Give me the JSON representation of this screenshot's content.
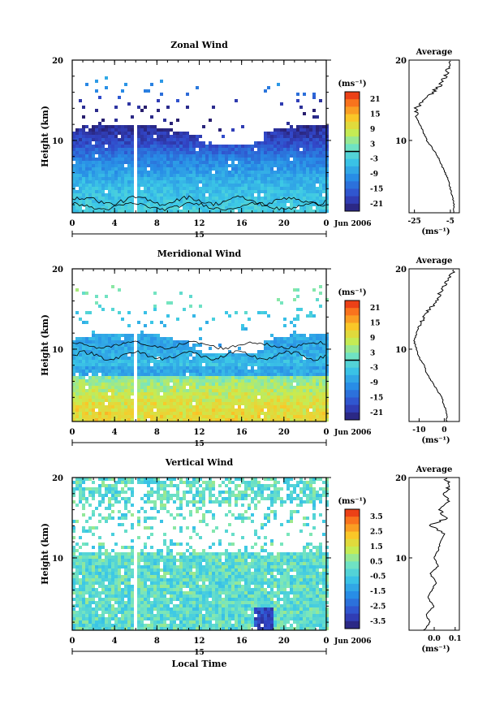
{
  "chart_data": [
    {
      "type": "heatmap",
      "title": "Zonal Wind",
      "ylabel": "Height (km)",
      "x_ticks": [
        "0",
        "4",
        "8",
        "12",
        "16",
        "20",
        "0"
      ],
      "x_range": [
        0,
        24
      ],
      "y_ticks": [
        "20",
        "10"
      ],
      "y_range": [
        1,
        20
      ],
      "date_marker": "15",
      "date_label": "Jun 2006",
      "colorbar": {
        "unit": "(ms⁻¹)",
        "ticks": [
          "21",
          "15",
          "9",
          "3",
          "-3",
          "-9",
          "-15",
          "-21"
        ],
        "range": [
          -24,
          24
        ]
      },
      "average_profile": {
        "title": "Average",
        "x_ticks": [
          "-25",
          "-5"
        ],
        "x_range": [
          -28,
          0
        ],
        "xlabel": "(ms⁻¹)",
        "y_ticks": [
          "20",
          "10"
        ],
        "heights": [
          1,
          2,
          3,
          4,
          5,
          6,
          7,
          8,
          9,
          10,
          11,
          12,
          13,
          14,
          15,
          16,
          17,
          18,
          19,
          20
        ],
        "values": [
          -3,
          -3,
          -4,
          -5,
          -6,
          -8,
          -10,
          -12,
          -15,
          -18,
          -20,
          -22,
          -24,
          -24,
          -20,
          -15,
          -10,
          -8,
          -6,
          -5
        ]
      }
    },
    {
      "type": "heatmap",
      "title": "Meridional Wind",
      "ylabel": "Height (km)",
      "x_ticks": [
        "0",
        "4",
        "8",
        "12",
        "16",
        "20",
        "0"
      ],
      "x_range": [
        0,
        24
      ],
      "y_ticks": [
        "20",
        "10"
      ],
      "y_range": [
        1,
        20
      ],
      "date_marker": "15",
      "date_label": "Jun 2006",
      "colorbar": {
        "unit": "(ms⁻¹)",
        "ticks": [
          "21",
          "15",
          "9",
          "3",
          "-3",
          "-9",
          "-15",
          "-21"
        ],
        "range": [
          -24,
          24
        ]
      },
      "average_profile": {
        "title": "Average",
        "x_ticks": [
          "-10",
          "0"
        ],
        "x_range": [
          -14,
          6
        ],
        "xlabel": "(ms⁻¹)",
        "y_ticks": [
          "20",
          "10"
        ],
        "heights": [
          1,
          2,
          3,
          4,
          5,
          6,
          7,
          8,
          9,
          10,
          11,
          12,
          13,
          14,
          15,
          16,
          17,
          18,
          19,
          20
        ],
        "values": [
          1,
          1,
          0,
          -1,
          -3,
          -5,
          -7,
          -8,
          -10,
          -11,
          -12,
          -11,
          -10,
          -8,
          -6,
          -3,
          -2,
          0,
          2,
          4
        ]
      }
    },
    {
      "type": "heatmap",
      "title": "Vertical Wind",
      "ylabel": "Height (km)",
      "xlabel": "Local Time",
      "x_ticks": [
        "0",
        "4",
        "8",
        "12",
        "16",
        "20",
        "0"
      ],
      "x_range": [
        0,
        24
      ],
      "y_ticks": [
        "20",
        "10"
      ],
      "y_range": [
        1,
        20
      ],
      "date_marker": "15",
      "date_label": "Jun 2006",
      "colorbar": {
        "unit": "(ms⁻¹)",
        "ticks": [
          "3.5",
          "2.5",
          "1.5",
          "0.5",
          "-0.5",
          "-1.5",
          "-2.5",
          "-3.5"
        ],
        "range": [
          -4,
          4
        ]
      },
      "average_profile": {
        "title": "Average",
        "x_ticks": [
          "0.0",
          "0.1"
        ],
        "x_range": [
          -0.12,
          0.12
        ],
        "xlabel": "(ms⁻¹)",
        "y_ticks": [
          "20",
          "10"
        ],
        "heights": [
          1,
          2,
          3,
          4,
          5,
          6,
          7,
          8,
          9,
          10,
          11,
          12,
          13,
          14,
          15,
          16,
          17,
          18,
          19,
          20
        ],
        "values": [
          -0.05,
          -0.02,
          -0.04,
          0.0,
          -0.03,
          -0.01,
          0.01,
          -0.02,
          0.02,
          0.0,
          0.02,
          0.03,
          0.05,
          -0.02,
          0.06,
          0.02,
          0.07,
          0.04,
          0.08,
          0.05
        ]
      }
    }
  ]
}
